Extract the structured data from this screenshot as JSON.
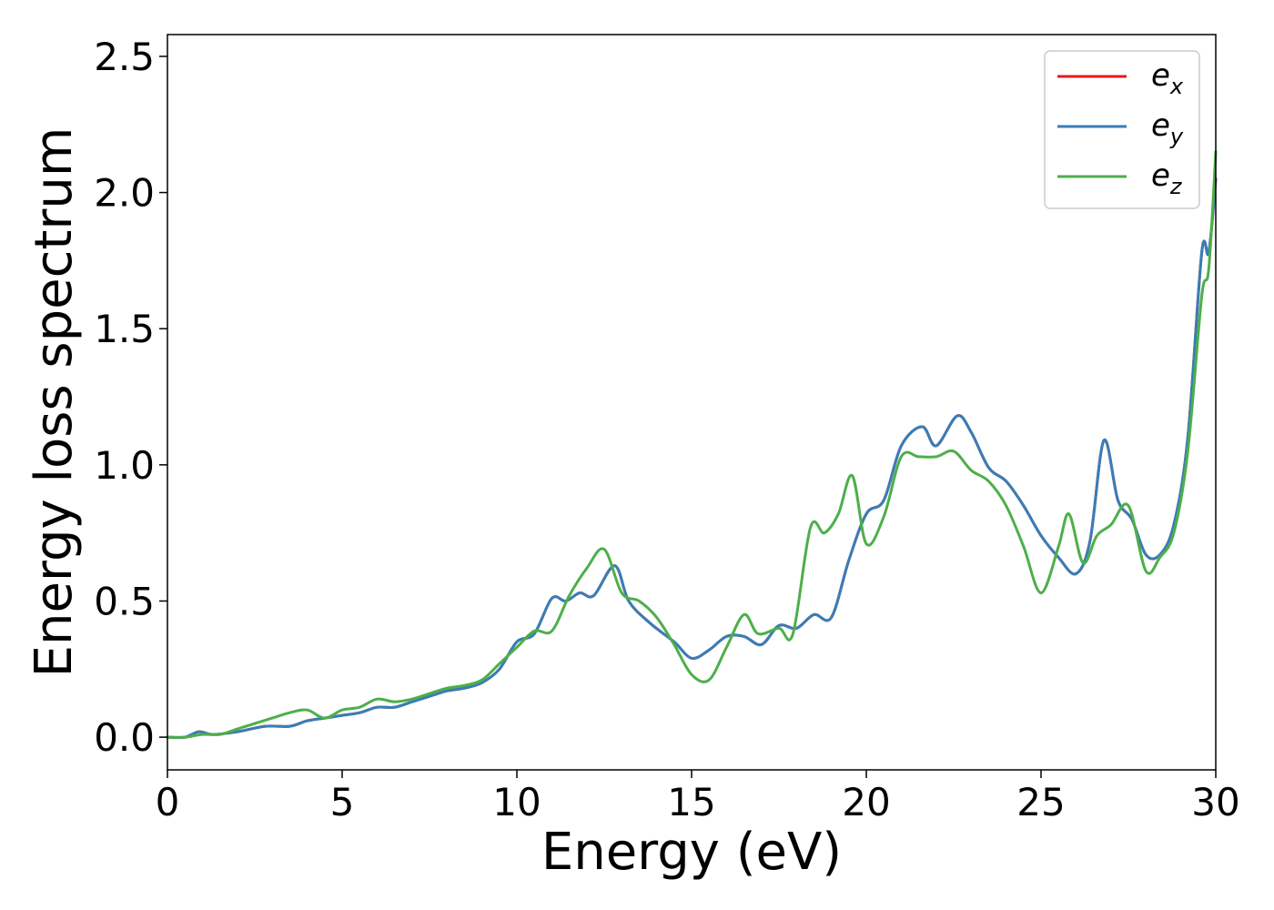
{
  "chart_data": {
    "type": "line",
    "title": "",
    "xlabel": "Energy (eV)",
    "ylabel": "Energy loss spectrum",
    "xlim": [
      0,
      30
    ],
    "ylim": [
      -0.12,
      2.58
    ],
    "xticks": [
      0,
      5,
      10,
      15,
      20,
      25,
      30
    ],
    "xtick_labels": [
      "0",
      "5",
      "10",
      "15",
      "20",
      "25",
      "30"
    ],
    "yticks": [
      0.0,
      0.5,
      1.0,
      1.5,
      2.0,
      2.5
    ],
    "ytick_labels": [
      "0.0",
      "0.5",
      "1.0",
      "1.5",
      "2.0",
      "2.5"
    ],
    "grid": false,
    "legend_position": "top-right",
    "series": [
      {
        "name": "e",
        "sub": "x",
        "color": "#e41a1c",
        "x": [
          0,
          0.5,
          0.9,
          1.3,
          2,
          2.8,
          3.5,
          4,
          4.5,
          5,
          5.5,
          6,
          6.5,
          7,
          7.5,
          8,
          8.5,
          9,
          9.5,
          10,
          10.5,
          11,
          11.4,
          11.8,
          12.2,
          12.8,
          13.2,
          13.8,
          14.5,
          15,
          15.5,
          16,
          16.5,
          17,
          17.5,
          18,
          18.5,
          19,
          19.5,
          20,
          20.5,
          21,
          21.6,
          22,
          22.6,
          23,
          23.5,
          24,
          24.5,
          25,
          25.5,
          26,
          26.4,
          26.8,
          27.2,
          27.6,
          28,
          28.4,
          28.8,
          29.2,
          29.6,
          29.8,
          30
        ],
        "y": [
          0,
          0.0,
          0.02,
          0.01,
          0.02,
          0.04,
          0.04,
          0.06,
          0.07,
          0.08,
          0.09,
          0.11,
          0.11,
          0.13,
          0.15,
          0.17,
          0.18,
          0.2,
          0.25,
          0.35,
          0.38,
          0.51,
          0.5,
          0.53,
          0.52,
          0.63,
          0.5,
          0.42,
          0.35,
          0.29,
          0.32,
          0.37,
          0.37,
          0.34,
          0.41,
          0.4,
          0.45,
          0.44,
          0.65,
          0.82,
          0.87,
          1.07,
          1.14,
          1.07,
          1.18,
          1.12,
          0.99,
          0.94,
          0.85,
          0.74,
          0.66,
          0.6,
          0.72,
          1.09,
          0.87,
          0.8,
          0.67,
          0.67,
          0.78,
          1.1,
          1.78,
          1.78,
          2.05
        ]
      },
      {
        "name": "e",
        "sub": "y",
        "color": "#377eb8",
        "x": [
          0,
          0.5,
          0.9,
          1.3,
          2,
          2.8,
          3.5,
          4,
          4.5,
          5,
          5.5,
          6,
          6.5,
          7,
          7.5,
          8,
          8.5,
          9,
          9.5,
          10,
          10.5,
          11,
          11.4,
          11.8,
          12.2,
          12.8,
          13.2,
          13.8,
          14.5,
          15,
          15.5,
          16,
          16.5,
          17,
          17.5,
          18,
          18.5,
          19,
          19.5,
          20,
          20.5,
          21,
          21.6,
          22,
          22.6,
          23,
          23.5,
          24,
          24.5,
          25,
          25.5,
          26,
          26.4,
          26.8,
          27.2,
          27.6,
          28,
          28.4,
          28.8,
          29.2,
          29.6,
          29.8,
          30
        ],
        "y": [
          0,
          0.0,
          0.02,
          0.01,
          0.02,
          0.04,
          0.04,
          0.06,
          0.07,
          0.08,
          0.09,
          0.11,
          0.11,
          0.13,
          0.15,
          0.17,
          0.18,
          0.2,
          0.25,
          0.35,
          0.38,
          0.51,
          0.5,
          0.53,
          0.52,
          0.63,
          0.5,
          0.42,
          0.35,
          0.29,
          0.32,
          0.37,
          0.37,
          0.34,
          0.41,
          0.4,
          0.45,
          0.44,
          0.65,
          0.82,
          0.87,
          1.07,
          1.14,
          1.07,
          1.18,
          1.12,
          0.99,
          0.94,
          0.85,
          0.74,
          0.66,
          0.6,
          0.72,
          1.09,
          0.87,
          0.8,
          0.67,
          0.67,
          0.78,
          1.1,
          1.78,
          1.78,
          2.05
        ]
      },
      {
        "name": "e",
        "sub": "z",
        "color": "#4daf4a",
        "x": [
          0,
          0.5,
          1,
          1.5,
          2,
          2.5,
          3,
          3.5,
          4,
          4.5,
          5,
          5.5,
          6,
          6.5,
          7,
          7.5,
          8,
          8.5,
          9,
          9.5,
          10,
          10.5,
          11,
          11.5,
          12,
          12.5,
          13,
          13.5,
          14,
          14.5,
          15,
          15.5,
          16,
          16.5,
          16.9,
          17.5,
          17.9,
          18.4,
          18.8,
          19.2,
          19.6,
          20,
          20.5,
          21,
          21.5,
          22,
          22.5,
          23,
          23.5,
          24,
          24.5,
          25,
          25.5,
          25.8,
          26.2,
          26.6,
          27,
          27.5,
          28,
          28.4,
          28.8,
          29.2,
          29.6,
          29.8,
          30
        ],
        "y": [
          0,
          0.0,
          0.01,
          0.01,
          0.03,
          0.05,
          0.07,
          0.09,
          0.1,
          0.07,
          0.1,
          0.11,
          0.14,
          0.13,
          0.14,
          0.16,
          0.18,
          0.19,
          0.21,
          0.27,
          0.33,
          0.39,
          0.39,
          0.52,
          0.62,
          0.69,
          0.53,
          0.5,
          0.44,
          0.34,
          0.23,
          0.21,
          0.33,
          0.45,
          0.38,
          0.4,
          0.38,
          0.77,
          0.75,
          0.82,
          0.96,
          0.71,
          0.81,
          1.03,
          1.03,
          1.03,
          1.05,
          0.98,
          0.94,
          0.85,
          0.7,
          0.53,
          0.7,
          0.82,
          0.64,
          0.74,
          0.78,
          0.85,
          0.61,
          0.66,
          0.75,
          1.05,
          1.62,
          1.72,
          2.15
        ]
      }
    ]
  }
}
